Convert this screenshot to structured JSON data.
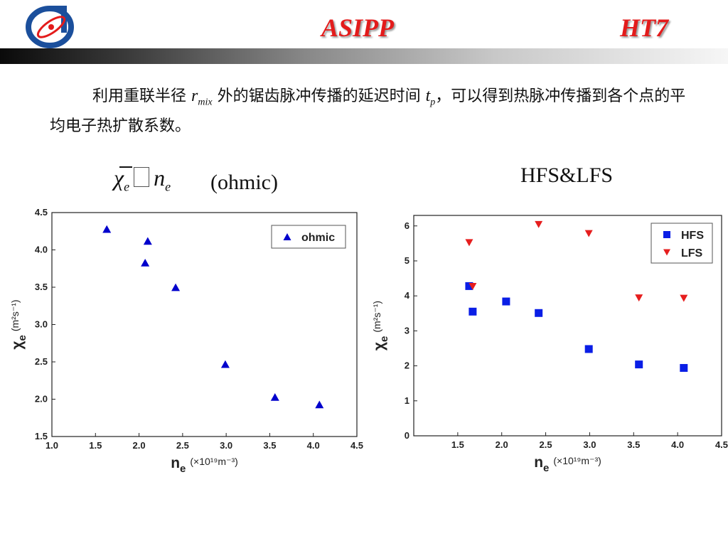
{
  "header": {
    "title_left": "ASIPP",
    "title_right": "HT7",
    "logo_icon": "asipp-logo-icon",
    "accent_color": "#e31b1b"
  },
  "intro": {
    "text_before": "利用重联半径",
    "r_symbol": "r",
    "r_subscript": "mix",
    "text_middle": "外的锯齿脉冲传播的延迟时间",
    "t_symbol": "t",
    "t_subscript": "p",
    "text_after": "，可以得到热脉冲传播到各个点的平均电子热扩散系数。"
  },
  "left_caption": {
    "chi_symbol": "χ",
    "chi_subscript": "e",
    "n_symbol": "n",
    "n_subscript": "e",
    "condition": "(ohmic)"
  },
  "right_caption": {
    "text": "HFS&LFS"
  },
  "chart_data": [
    {
      "type": "scatter",
      "xlim": [
        1.0,
        4.5
      ],
      "ylim": [
        1.5,
        4.5
      ],
      "xticks": [
        "1.0",
        "1.5",
        "2.0",
        "2.5",
        "3.0",
        "3.5",
        "4.0",
        "4.5"
      ],
      "yticks": [
        "1.5",
        "2.0",
        "2.5",
        "3.0",
        "3.5",
        "4.0",
        "4.5"
      ],
      "xlabel_main": "n",
      "xlabel_sub": "e",
      "xlabel_unit": "(×10¹⁹m⁻³)",
      "ylabel_main": "χ",
      "ylabel_sub": "e",
      "ylabel_unit": "(m²s⁻¹)",
      "legend_position": "top-right",
      "grid": false,
      "series": [
        {
          "name": "ohmic",
          "marker": "triangle-up",
          "color": "#0000cc",
          "x": [
            1.63,
            2.07,
            2.1,
            2.42,
            2.99,
            3.56,
            4.07
          ],
          "y": [
            4.28,
            3.83,
            4.12,
            3.5,
            2.47,
            2.03,
            1.93
          ]
        }
      ]
    },
    {
      "type": "scatter",
      "xlim": [
        1.0,
        4.5
      ],
      "ylim": [
        0,
        6.3
      ],
      "xticks": [
        "1.5",
        "2.0",
        "2.5",
        "3.0",
        "3.5",
        "4.0",
        "4.5"
      ],
      "yticks": [
        "0",
        "1",
        "2",
        "3",
        "4",
        "5",
        "6"
      ],
      "xlabel_main": "n",
      "xlabel_sub": "e",
      "xlabel_unit": "(×10¹⁹m⁻³)",
      "ylabel_main": "χ",
      "ylabel_sub": "e",
      "ylabel_unit": "(m²s⁻¹)",
      "legend_position": "top-right",
      "grid": false,
      "series": [
        {
          "name": "HFS",
          "marker": "square",
          "color": "#0a1ee6",
          "x": [
            1.63,
            1.67,
            2.05,
            2.42,
            2.99,
            3.56,
            4.07
          ],
          "y": [
            4.28,
            3.55,
            3.84,
            3.51,
            2.48,
            2.04,
            1.94
          ]
        },
        {
          "name": "LFS",
          "marker": "triangle-down",
          "color": "#e61e1e",
          "x": [
            1.63,
            1.67,
            2.42,
            2.99,
            3.56,
            4.07
          ],
          "y": [
            5.52,
            4.27,
            6.04,
            5.78,
            3.94,
            3.93
          ]
        }
      ]
    }
  ]
}
